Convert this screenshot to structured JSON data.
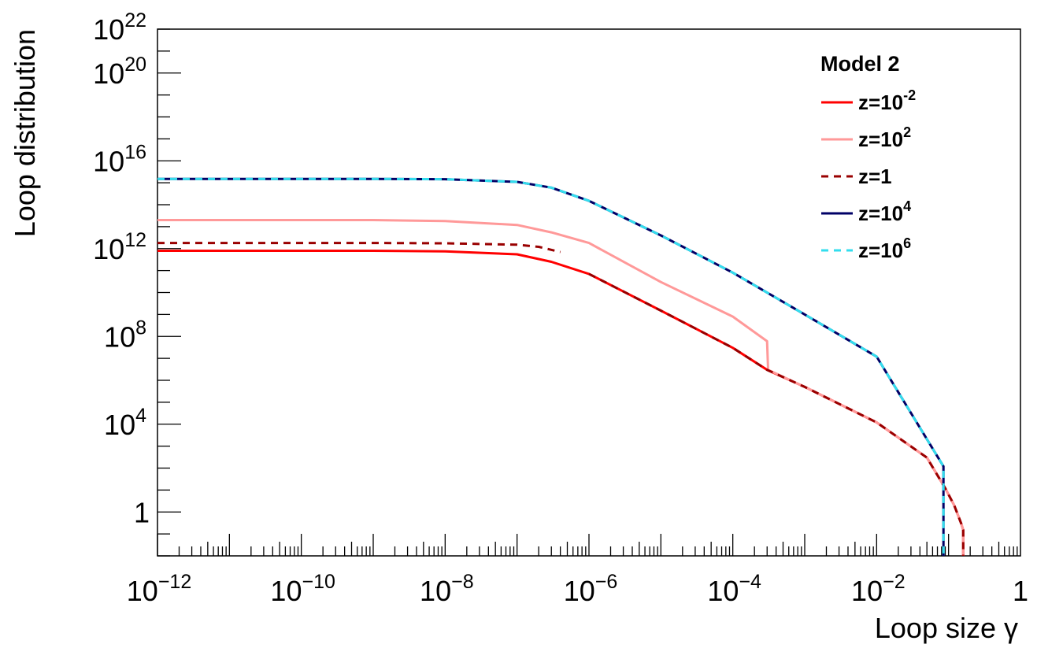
{
  "chart_data": {
    "type": "line",
    "xlabel": "Loop size γ",
    "ylabel": "Loop distribution",
    "x_scale": "log",
    "y_scale": "log",
    "xlim": [
      1e-12,
      1
    ],
    "ylim": [
      0.01,
      1e+22
    ],
    "grid": false,
    "legend_title": "Model 2",
    "legend_position": "top-right",
    "x_ticks": [
      {
        "value": 1e-12,
        "base": "10",
        "exp": "−12"
      },
      {
        "value": 1e-10,
        "base": "10",
        "exp": "−10"
      },
      {
        "value": 1e-08,
        "base": "10",
        "exp": "−8"
      },
      {
        "value": 1e-06,
        "base": "10",
        "exp": "−6"
      },
      {
        "value": 0.0001,
        "base": "10",
        "exp": "−4"
      },
      {
        "value": 0.01,
        "base": "10",
        "exp": "−2"
      },
      {
        "value": 1,
        "base": "1",
        "exp": ""
      }
    ],
    "y_ticks": [
      {
        "value": 1,
        "base": "1",
        "exp": ""
      },
      {
        "value": 10000.0,
        "base": "10",
        "exp": "4"
      },
      {
        "value": 100000000.0,
        "base": "10",
        "exp": "8"
      },
      {
        "value": 1000000000000.0,
        "base": "10",
        "exp": "12"
      },
      {
        "value": 1e+16,
        "base": "10",
        "exp": "16"
      },
      {
        "value": 1e+20,
        "base": "10",
        "exp": "20"
      },
      {
        "value": 1e+22,
        "base": "10",
        "exp": "22"
      }
    ],
    "series": [
      {
        "name": "z=10-2",
        "label_base": "z=10",
        "label_exp": "-2",
        "color": "#ff0000",
        "dash": "",
        "x": [
          1e-12,
          1e-09,
          1e-08,
          1e-07,
          3e-07,
          1e-06,
          1e-05,
          0.0001,
          0.0003,
          0.001,
          0.01,
          0.05,
          0.09,
          0.12,
          0.15,
          0.16,
          0.16
        ],
        "y": [
          800000000000.0,
          800000000000.0,
          750000000000.0,
          550000000000.0,
          250000000000.0,
          70000000000.0,
          1500000000.0,
          30000000.0,
          3000000.0,
          500000.0,
          12000.0,
          300.0,
          12,
          2,
          0.3,
          0.15,
          0.01
        ]
      },
      {
        "name": "z=102",
        "label_base": "z=10",
        "label_exp": "2",
        "color": "#ff9999",
        "dash": "",
        "x": [
          1e-12,
          1e-09,
          1e-08,
          1e-07,
          3e-07,
          1e-06,
          1e-05,
          0.0001,
          0.0003,
          0.00031,
          0.001,
          0.01,
          0.05,
          0.09,
          0.12,
          0.15,
          0.16,
          0.16
        ],
        "y": [
          20000000000000.0,
          20000000000000.0,
          18000000000000.0,
          12000000000000.0,
          5500000000000.0,
          1800000000000.0,
          30000000000.0,
          800000000.0,
          60000000.0,
          3000000.0,
          500000.0,
          12000.0,
          300.0,
          12,
          2,
          0.3,
          0.15,
          0.01
        ]
      },
      {
        "name": "z=1",
        "label_base": "z=1",
        "label_exp": "",
        "color": "#990000",
        "dash": "9,7",
        "x": [
          1e-12,
          1e-09,
          1e-08,
          1e-07,
          2e-07,
          4e-07
        ],
        "y": [
          1800000000000.0,
          1800000000000.0,
          1750000000000.0,
          1500000000000.0,
          1200000000000.0,
          700000000000.0
        ]
      },
      {
        "name": "z=1",
        "label_base": "",
        "label_exp": "",
        "color": "#990000",
        "dash": "9,7",
        "x": [
          1e-06,
          1e-05,
          0.0001,
          0.0003,
          0.001,
          0.01,
          0.05,
          0.09,
          0.12,
          0.15,
          0.16,
          0.16
        ],
        "y": [
          70000000000.0,
          1500000000.0,
          30000000.0,
          3000000.0,
          500000.0,
          12000.0,
          300.0,
          12,
          2,
          0.3,
          0.15,
          0.01
        ]
      },
      {
        "name": "z=104",
        "label_base": "z=10",
        "label_exp": "4",
        "color": "#000066",
        "dash": "",
        "x": [
          1e-12,
          1e-09,
          1e-08,
          1e-07,
          3e-07,
          1e-06,
          1e-05,
          0.0001,
          0.001,
          0.01,
          0.085,
          0.085
        ],
        "y": [
          1500000000000000.0,
          1500000000000000.0,
          1450000000000000.0,
          1100000000000000.0,
          600000000000000.0,
          150000000000000.0,
          4000000000000.0,
          80000000000.0,
          1000000000.0,
          12000000.0,
          120.0,
          0.01
        ]
      },
      {
        "name": "z=106",
        "label_base": "z=10",
        "label_exp": "6",
        "color": "#33ddee",
        "dash": "9,7",
        "x": [
          1e-12,
          1e-09,
          1e-08,
          1e-07,
          3e-07,
          1e-06,
          1e-05,
          0.0001,
          0.001,
          0.01,
          0.085,
          0.085
        ],
        "y": [
          1500000000000000.0,
          1500000000000000.0,
          1450000000000000.0,
          1100000000000000.0,
          600000000000000.0,
          150000000000000.0,
          4000000000000.0,
          80000000000.0,
          1000000000.0,
          12000000.0,
          120.0,
          0.01
        ]
      }
    ]
  }
}
